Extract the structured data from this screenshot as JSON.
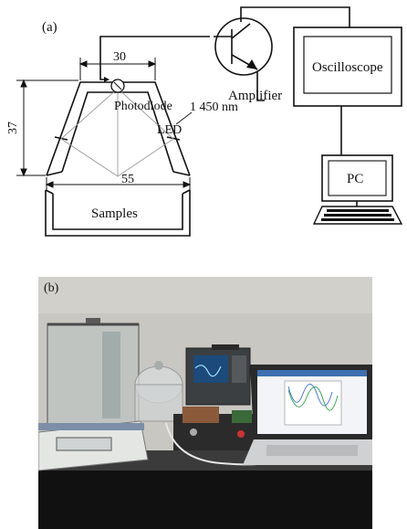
{
  "panel_a": {
    "label": "(a)",
    "dimensions": {
      "top": "30",
      "height": "37",
      "bottom": "55"
    },
    "labels": {
      "photodiode": "Photodiode",
      "led": "LED",
      "wavelength": "1 450 nm",
      "amplifier": "Amplifier",
      "oscilloscope": "Oscilloscope",
      "pc": "PC",
      "samples": "Samples"
    }
  },
  "panel_b": {
    "label": "(b)"
  },
  "colors": {
    "line": "#111111",
    "guide": "#9a9a9a"
  }
}
